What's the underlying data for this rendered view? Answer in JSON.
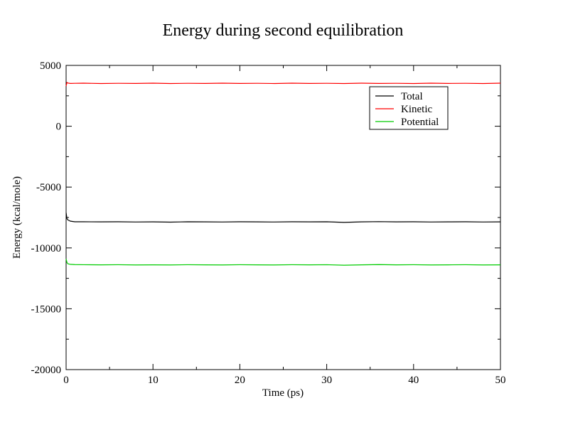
{
  "chart_data": {
    "type": "line",
    "title": "Energy during second equilibration",
    "xlabel": "Time (ps)",
    "ylabel": "Energy (kcal/mole)",
    "xlim": [
      0,
      50
    ],
    "ylim": [
      -20000,
      5000
    ],
    "x_ticks": [
      0,
      10,
      20,
      30,
      40,
      50
    ],
    "x_tick_labels": [
      "0",
      "10",
      "20",
      "30",
      "40",
      "50"
    ],
    "y_ticks": [
      -20000,
      -15000,
      -10000,
      -5000,
      0,
      5000
    ],
    "y_tick_labels": [
      "-20000",
      "-15000",
      "-10000",
      "-5000",
      "0",
      "5000"
    ],
    "grid": false,
    "legend_position": "top-right",
    "series": [
      {
        "name": "Total",
        "color": "#000000",
        "x": [
          0,
          0.1,
          0.2,
          0.5,
          1,
          2,
          4,
          6,
          8,
          10,
          12,
          14,
          16,
          18,
          20,
          22,
          24,
          26,
          28,
          30,
          32,
          34,
          36,
          38,
          40,
          42,
          44,
          46,
          48,
          50
        ],
        "y": [
          -7100,
          -7600,
          -7700,
          -7800,
          -7850,
          -7850,
          -7860,
          -7850,
          -7870,
          -7860,
          -7880,
          -7850,
          -7860,
          -7870,
          -7850,
          -7860,
          -7870,
          -7850,
          -7860,
          -7850,
          -7900,
          -7860,
          -7840,
          -7860,
          -7850,
          -7870,
          -7860,
          -7850,
          -7870,
          -7860
        ]
      },
      {
        "name": "Kinetic",
        "color": "#ff0000",
        "x": [
          0,
          0.1,
          0.2,
          0.5,
          1,
          2,
          4,
          6,
          8,
          10,
          12,
          14,
          16,
          18,
          20,
          22,
          24,
          26,
          28,
          30,
          32,
          34,
          36,
          38,
          40,
          42,
          44,
          46,
          48,
          50
        ],
        "y": [
          3300,
          3600,
          3550,
          3520,
          3530,
          3540,
          3510,
          3530,
          3520,
          3540,
          3510,
          3530,
          3520,
          3540,
          3520,
          3530,
          3510,
          3540,
          3520,
          3530,
          3510,
          3540,
          3520,
          3530,
          3510,
          3540,
          3520,
          3530,
          3510,
          3540
        ]
      },
      {
        "name": "Potential",
        "color": "#00cc00",
        "x": [
          0,
          0.1,
          0.2,
          0.5,
          1,
          2,
          4,
          6,
          8,
          10,
          12,
          14,
          16,
          18,
          20,
          22,
          24,
          26,
          28,
          30,
          32,
          34,
          36,
          38,
          40,
          42,
          44,
          46,
          48,
          50
        ],
        "y": [
          -10900,
          -11200,
          -11300,
          -11350,
          -11370,
          -11380,
          -11390,
          -11380,
          -11400,
          -11390,
          -11400,
          -11380,
          -11390,
          -11400,
          -11380,
          -11390,
          -11400,
          -11380,
          -11390,
          -11380,
          -11420,
          -11390,
          -11370,
          -11390,
          -11380,
          -11400,
          -11390,
          -11380,
          -11400,
          -11390
        ]
      }
    ]
  }
}
